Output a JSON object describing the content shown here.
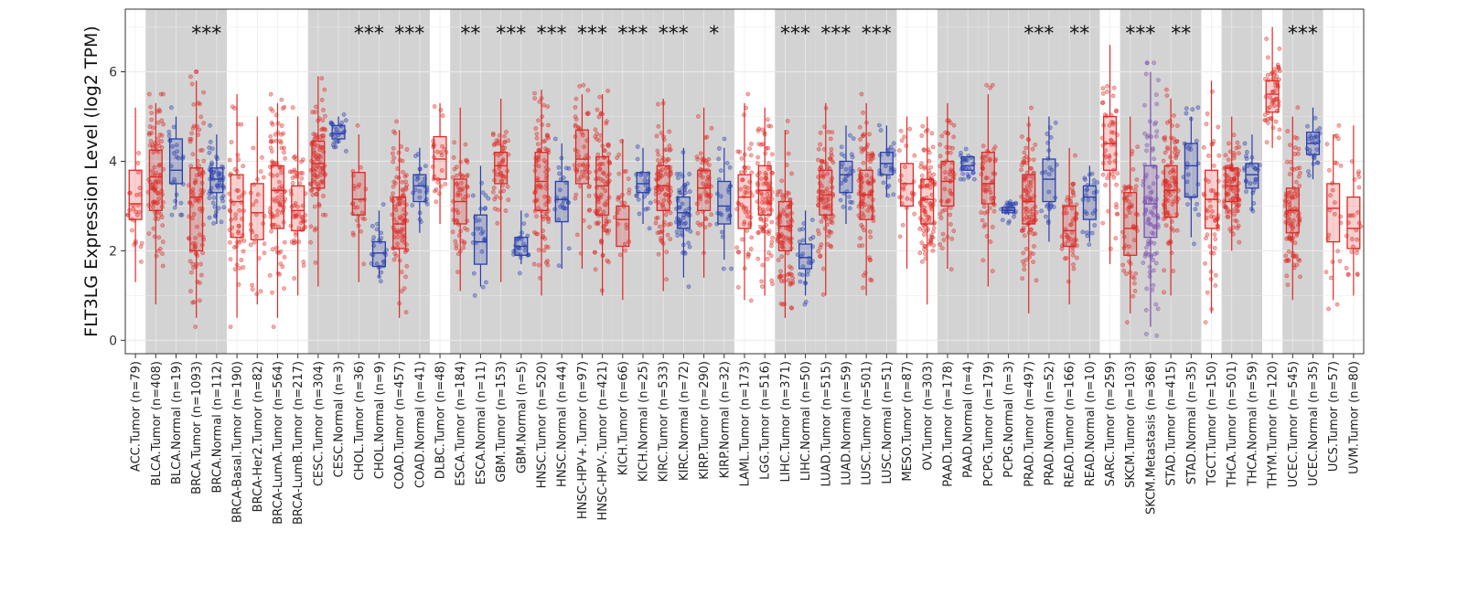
{
  "chart_data": {
    "type": "boxplot",
    "title": "",
    "xlabel": "",
    "ylabel": "FLT3LG Expression Level (log2 TPM)",
    "ylim": [
      -0.3,
      7.4
    ],
    "yticks": [
      0,
      2,
      4,
      6
    ],
    "grid": true,
    "colors": {
      "Tumor": "#dd2a24",
      "Normal": "#2a3fae",
      "Metastasis": "#7b4fad",
      "shade": "#d3d3d3"
    },
    "categories": [
      {
        "label": "ACC.Tumor (n=79)",
        "kind": "Tumor",
        "q1": 2.7,
        "median": 3.05,
        "q3": 3.8,
        "wmin": 1.3,
        "wmax": 5.2,
        "spread": "narrow"
      },
      {
        "label": "BLCA.Tumor (n=408)",
        "kind": "Tumor",
        "q1": 2.9,
        "median": 3.65,
        "q3": 4.25,
        "wmin": 0.8,
        "wmax": 5.3,
        "spread": "wide"
      },
      {
        "label": "BLCA.Normal (n=19)",
        "kind": "Normal",
        "q1": 3.5,
        "median": 3.8,
        "q3": 4.5,
        "wmin": 3.0,
        "wmax": 5.0,
        "spread": "narrow"
      },
      {
        "label": "BRCA.Tumor (n=1093)",
        "kind": "Tumor",
        "q1": 2.0,
        "median": 3.2,
        "q3": 3.85,
        "wmin": 0.5,
        "wmax": 5.8,
        "spread": "wide"
      },
      {
        "label": "BRCA.Normal (n=112)",
        "kind": "Normal",
        "q1": 3.3,
        "median": 3.6,
        "q3": 3.85,
        "wmin": 2.6,
        "wmax": 4.6,
        "spread": "mid"
      },
      {
        "label": "BRCA-Basal.Tumor (n=190)",
        "kind": "Tumor",
        "q1": 2.3,
        "median": 3.1,
        "q3": 3.7,
        "wmin": 0.5,
        "wmax": 5.5,
        "spread": "mid"
      },
      {
        "label": "BRCA-Her2.Tumor (n=82)",
        "kind": "Tumor",
        "q1": 2.25,
        "median": 2.85,
        "q3": 3.5,
        "wmin": 0.8,
        "wmax": 5.0,
        "spread": "narrow"
      },
      {
        "label": "BRCA-LumA.Tumor (n=564)",
        "kind": "Tumor",
        "q1": 2.5,
        "median": 3.35,
        "q3": 3.9,
        "wmin": 0.5,
        "wmax": 5.3,
        "spread": "wide"
      },
      {
        "label": "BRCA-LumB.Tumor (n=217)",
        "kind": "Tumor",
        "q1": 2.45,
        "median": 2.9,
        "q3": 3.45,
        "wmin": 1.0,
        "wmax": 5.0,
        "spread": "mid"
      },
      {
        "label": "CESC.Tumor (n=304)",
        "kind": "Tumor",
        "q1": 3.4,
        "median": 3.95,
        "q3": 4.45,
        "wmin": 1.2,
        "wmax": 5.9,
        "spread": "wide"
      },
      {
        "label": "CESC.Normal (n=3)",
        "kind": "Normal",
        "q1": 4.5,
        "median": 4.62,
        "q3": 4.8,
        "wmin": 4.4,
        "wmax": 5.0,
        "spread": "narrow"
      },
      {
        "label": "CHOL.Tumor (n=36)",
        "kind": "Tumor",
        "q1": 2.8,
        "median": 3.15,
        "q3": 3.75,
        "wmin": 1.3,
        "wmax": 4.6,
        "spread": "narrow"
      },
      {
        "label": "CHOL.Normal (n=9)",
        "kind": "Normal",
        "q1": 1.65,
        "median": 1.95,
        "q3": 2.2,
        "wmin": 1.4,
        "wmax": 2.9,
        "spread": "narrow"
      },
      {
        "label": "COAD.Tumor (n=457)",
        "kind": "Tumor",
        "q1": 2.05,
        "median": 2.6,
        "q3": 3.2,
        "wmin": 0.5,
        "wmax": 4.7,
        "spread": "wide"
      },
      {
        "label": "COAD.Normal (n=41)",
        "kind": "Normal",
        "q1": 3.1,
        "median": 3.45,
        "q3": 3.7,
        "wmin": 2.4,
        "wmax": 4.3,
        "spread": "narrow"
      },
      {
        "label": "DLBC.Tumor (n=48)",
        "kind": "Tumor",
        "q1": 3.6,
        "median": 4.05,
        "q3": 4.55,
        "wmin": 2.6,
        "wmax": 5.3,
        "spread": "narrow"
      },
      {
        "label": "ESCA.Tumor (n=184)",
        "kind": "Tumor",
        "q1": 2.6,
        "median": 3.1,
        "q3": 3.6,
        "wmin": 1.1,
        "wmax": 5.2,
        "spread": "mid"
      },
      {
        "label": "ESCA.Normal (n=11)",
        "kind": "Normal",
        "q1": 1.7,
        "median": 2.2,
        "q3": 2.8,
        "wmin": 1.2,
        "wmax": 3.9,
        "spread": "narrow"
      },
      {
        "label": "GBM.Tumor (n=153)",
        "kind": "Tumor",
        "q1": 3.5,
        "median": 3.9,
        "q3": 4.2,
        "wmin": 1.3,
        "wmax": 5.4,
        "spread": "mid"
      },
      {
        "label": "GBM.Normal (n=5)",
        "kind": "Normal",
        "q1": 1.9,
        "median": 2.1,
        "q3": 2.3,
        "wmin": 1.7,
        "wmax": 2.9,
        "spread": "narrow"
      },
      {
        "label": "HNSC.Tumor (n=520)",
        "kind": "Tumor",
        "q1": 2.9,
        "median": 3.55,
        "q3": 4.2,
        "wmin": 1.0,
        "wmax": 5.6,
        "spread": "wide"
      },
      {
        "label": "HNSC.Normal (n=44)",
        "kind": "Normal",
        "q1": 2.65,
        "median": 3.15,
        "q3": 3.55,
        "wmin": 1.6,
        "wmax": 4.4,
        "spread": "narrow"
      },
      {
        "label": "HNSC-HPV+.Tumor (n=97)",
        "kind": "Tumor",
        "q1": 3.5,
        "median": 4.05,
        "q3": 4.7,
        "wmin": 1.6,
        "wmax": 5.5,
        "spread": "mid"
      },
      {
        "label": "HNSC-HPV-.Tumor (n=421)",
        "kind": "Tumor",
        "q1": 2.8,
        "median": 3.45,
        "q3": 4.1,
        "wmin": 1.0,
        "wmax": 5.5,
        "spread": "wide"
      },
      {
        "label": "KICH.Tumor (n=66)",
        "kind": "Tumor",
        "q1": 2.1,
        "median": 2.7,
        "q3": 3.0,
        "wmin": 0.9,
        "wmax": 4.5,
        "spread": "narrow"
      },
      {
        "label": "KICH.Normal (n=25)",
        "kind": "Normal",
        "q1": 3.3,
        "median": 3.5,
        "q3": 3.75,
        "wmin": 2.6,
        "wmax": 4.3,
        "spread": "narrow"
      },
      {
        "label": "KIRC.Tumor (n=533)",
        "kind": "Tumor",
        "q1": 2.9,
        "median": 3.45,
        "q3": 3.9,
        "wmin": 1.1,
        "wmax": 5.4,
        "spread": "wide"
      },
      {
        "label": "KIRC.Normal (n=72)",
        "kind": "Normal",
        "q1": 2.5,
        "median": 2.85,
        "q3": 3.2,
        "wmin": 1.4,
        "wmax": 4.3,
        "spread": "mid"
      },
      {
        "label": "KIRP.Tumor (n=290)",
        "kind": "Tumor",
        "q1": 2.9,
        "median": 3.4,
        "q3": 3.8,
        "wmin": 1.4,
        "wmax": 5.2,
        "spread": "mid"
      },
      {
        "label": "KIRP.Normal (n=32)",
        "kind": "Normal",
        "q1": 2.6,
        "median": 3.0,
        "q3": 3.55,
        "wmin": 1.8,
        "wmax": 4.3,
        "spread": "narrow"
      },
      {
        "label": "LAML.Tumor (n=173)",
        "kind": "Tumor",
        "q1": 2.5,
        "median": 3.2,
        "q3": 3.7,
        "wmin": 0.9,
        "wmax": 5.3,
        "spread": "mid"
      },
      {
        "label": "LGG.Tumor (n=516)",
        "kind": "Tumor",
        "q1": 2.8,
        "median": 3.35,
        "q3": 3.9,
        "wmin": 1.0,
        "wmax": 5.2,
        "spread": "wide"
      },
      {
        "label": "LIHC.Tumor (n=371)",
        "kind": "Tumor",
        "q1": 2.0,
        "median": 2.55,
        "q3": 3.1,
        "wmin": 0.5,
        "wmax": 4.7,
        "spread": "wide"
      },
      {
        "label": "LIHC.Normal (n=50)",
        "kind": "Normal",
        "q1": 1.6,
        "median": 1.85,
        "q3": 2.15,
        "wmin": 1.0,
        "wmax": 2.9,
        "spread": "narrow"
      },
      {
        "label": "LUAD.Tumor (n=515)",
        "kind": "Tumor",
        "q1": 2.8,
        "median": 3.25,
        "q3": 3.8,
        "wmin": 1.0,
        "wmax": 5.3,
        "spread": "wide"
      },
      {
        "label": "LUAD.Normal (n=59)",
        "kind": "Normal",
        "q1": 3.3,
        "median": 3.7,
        "q3": 4.0,
        "wmin": 2.6,
        "wmax": 4.8,
        "spread": "narrow"
      },
      {
        "label": "LUSC.Tumor (n=501)",
        "kind": "Tumor",
        "q1": 2.7,
        "median": 3.25,
        "q3": 3.8,
        "wmin": 1.0,
        "wmax": 5.3,
        "spread": "wide"
      },
      {
        "label": "LUSC.Normal (n=51)",
        "kind": "Normal",
        "q1": 3.7,
        "median": 3.95,
        "q3": 4.2,
        "wmin": 3.2,
        "wmax": 4.8,
        "spread": "narrow"
      },
      {
        "label": "MESO.Tumor (n=87)",
        "kind": "Tumor",
        "q1": 3.0,
        "median": 3.5,
        "q3": 3.95,
        "wmin": 1.6,
        "wmax": 5.0,
        "spread": "narrow"
      },
      {
        "label": "OV.Tumor (n=303)",
        "kind": "Tumor",
        "q1": 2.6,
        "median": 3.15,
        "q3": 3.6,
        "wmin": 0.8,
        "wmax": 5.0,
        "spread": "wide"
      },
      {
        "label": "PAAD.Tumor (n=178)",
        "kind": "Tumor",
        "q1": 3.0,
        "median": 3.55,
        "q3": 4.0,
        "wmin": 1.6,
        "wmax": 5.3,
        "spread": "mid"
      },
      {
        "label": "PAAD.Normal (n=4)",
        "kind": "Normal",
        "q1": 3.8,
        "median": 3.9,
        "q3": 4.1,
        "wmin": 3.8,
        "wmax": 4.1,
        "spread": "narrow"
      },
      {
        "label": "PCPG.Tumor (n=179)",
        "kind": "Tumor",
        "q1": 3.05,
        "median": 3.5,
        "q3": 4.2,
        "wmin": 1.2,
        "wmax": 5.5,
        "spread": "mid"
      },
      {
        "label": "PCPG.Normal (n=3)",
        "kind": "Normal",
        "q1": 2.85,
        "median": 2.9,
        "q3": 2.97,
        "wmin": 2.8,
        "wmax": 3.0,
        "spread": "narrow"
      },
      {
        "label": "PRAD.Tumor (n=497)",
        "kind": "Tumor",
        "q1": 2.6,
        "median": 3.1,
        "q3": 3.7,
        "wmin": 0.6,
        "wmax": 5.0,
        "spread": "wide"
      },
      {
        "label": "PRAD.Normal (n=52)",
        "kind": "Normal",
        "q1": 3.1,
        "median": 3.6,
        "q3": 4.05,
        "wmin": 2.2,
        "wmax": 5.0,
        "spread": "narrow"
      },
      {
        "label": "READ.Tumor (n=166)",
        "kind": "Tumor",
        "q1": 2.1,
        "median": 2.45,
        "q3": 3.0,
        "wmin": 0.8,
        "wmax": 4.3,
        "spread": "mid"
      },
      {
        "label": "READ.Normal (n=10)",
        "kind": "Normal",
        "q1": 2.7,
        "median": 3.2,
        "q3": 3.45,
        "wmin": 2.2,
        "wmax": 3.9,
        "spread": "narrow"
      },
      {
        "label": "SARC.Tumor (n=259)",
        "kind": "Tumor",
        "q1": 3.8,
        "median": 4.4,
        "q3": 5.0,
        "wmin": 1.7,
        "wmax": 6.6,
        "spread": "mid"
      },
      {
        "label": "SKCM.Tumor (n=103)",
        "kind": "Tumor",
        "q1": 1.9,
        "median": 2.5,
        "q3": 3.3,
        "wmin": 0.6,
        "wmax": 5.0,
        "spread": "mid"
      },
      {
        "label": "SKCM.Metastasis (n=368)",
        "kind": "Metastasis",
        "q1": 2.3,
        "median": 3.05,
        "q3": 3.9,
        "wmin": 0.3,
        "wmax": 6.0,
        "spread": "wide"
      },
      {
        "label": "STAD.Tumor (n=415)",
        "kind": "Tumor",
        "q1": 2.75,
        "median": 3.35,
        "q3": 3.9,
        "wmin": 1.0,
        "wmax": 5.4,
        "spread": "wide"
      },
      {
        "label": "STAD.Normal (n=35)",
        "kind": "Normal",
        "q1": 3.2,
        "median": 3.9,
        "q3": 4.4,
        "wmin": 2.3,
        "wmax": 5.0,
        "spread": "narrow"
      },
      {
        "label": "TGCT.Tumor (n=150)",
        "kind": "Tumor",
        "q1": 2.5,
        "median": 3.15,
        "q3": 3.8,
        "wmin": 0.6,
        "wmax": 5.8,
        "spread": "mid"
      },
      {
        "label": "THCA.Tumor (n=501)",
        "kind": "Tumor",
        "q1": 3.1,
        "median": 3.45,
        "q3": 3.85,
        "wmin": 2.0,
        "wmax": 5.0,
        "spread": "wide"
      },
      {
        "label": "THCA.Normal (n=59)",
        "kind": "Normal",
        "q1": 3.4,
        "median": 3.7,
        "q3": 3.95,
        "wmin": 2.9,
        "wmax": 4.6,
        "spread": "narrow"
      },
      {
        "label": "THYM.Tumor (n=120)",
        "kind": "Tumor",
        "q1": 5.1,
        "median": 5.5,
        "q3": 5.8,
        "wmin": 4.3,
        "wmax": 7.0,
        "spread": "mid"
      },
      {
        "label": "UCEC.Tumor (n=545)",
        "kind": "Tumor",
        "q1": 2.4,
        "median": 2.9,
        "q3": 3.4,
        "wmin": 0.9,
        "wmax": 5.0,
        "spread": "wide"
      },
      {
        "label": "UCEC.Normal (n=35)",
        "kind": "Normal",
        "q1": 4.15,
        "median": 4.4,
        "q3": 4.65,
        "wmin": 3.6,
        "wmax": 5.2,
        "spread": "narrow"
      },
      {
        "label": "UCS.Tumor (n=57)",
        "kind": "Tumor",
        "q1": 2.2,
        "median": 2.95,
        "q3": 3.5,
        "wmin": 0.9,
        "wmax": 4.6,
        "spread": "narrow"
      },
      {
        "label": "UVM.Tumor (n=80)",
        "kind": "Tumor",
        "q1": 2.05,
        "median": 2.5,
        "q3": 3.2,
        "wmin": 1.0,
        "wmax": 4.8,
        "spread": "narrow"
      }
    ],
    "shaded_groups": [
      {
        "start": 1,
        "end": 2
      },
      {
        "start": 3,
        "end": 4
      },
      {
        "start": 9,
        "end": 10
      },
      {
        "start": 11,
        "end": 12
      },
      {
        "start": 13,
        "end": 14
      },
      {
        "start": 16,
        "end": 17
      },
      {
        "start": 18,
        "end": 19
      },
      {
        "start": 20,
        "end": 21
      },
      {
        "start": 22,
        "end": 23
      },
      {
        "start": 24,
        "end": 25
      },
      {
        "start": 26,
        "end": 27
      },
      {
        "start": 28,
        "end": 29
      },
      {
        "start": 32,
        "end": 33
      },
      {
        "start": 34,
        "end": 35
      },
      {
        "start": 36,
        "end": 37
      },
      {
        "start": 40,
        "end": 41
      },
      {
        "start": 42,
        "end": 43
      },
      {
        "start": 44,
        "end": 45
      },
      {
        "start": 46,
        "end": 47
      },
      {
        "start": 49,
        "end": 50
      },
      {
        "start": 51,
        "end": 52
      },
      {
        "start": 54,
        "end": 55
      },
      {
        "start": 57,
        "end": 58
      }
    ],
    "annotations": [
      {
        "text": "***",
        "start": 3,
        "end": 4
      },
      {
        "text": "***",
        "start": 11,
        "end": 12
      },
      {
        "text": "***",
        "start": 13,
        "end": 14
      },
      {
        "text": "**",
        "start": 16,
        "end": 17
      },
      {
        "text": "***",
        "start": 18,
        "end": 19
      },
      {
        "text": "***",
        "start": 20,
        "end": 21
      },
      {
        "text": "***",
        "start": 22,
        "end": 23
      },
      {
        "text": "***",
        "start": 24,
        "end": 25
      },
      {
        "text": "***",
        "start": 26,
        "end": 27
      },
      {
        "text": "*",
        "start": 28,
        "end": 29
      },
      {
        "text": "***",
        "start": 32,
        "end": 33
      },
      {
        "text": "***",
        "start": 34,
        "end": 35
      },
      {
        "text": "***",
        "start": 36,
        "end": 37
      },
      {
        "text": "***",
        "start": 44,
        "end": 45
      },
      {
        "text": "**",
        "start": 46,
        "end": 47
      },
      {
        "text": "***",
        "start": 49,
        "end": 50
      },
      {
        "text": "**",
        "start": 51,
        "end": 52
      },
      {
        "text": "***",
        "start": 57,
        "end": 58
      }
    ]
  }
}
